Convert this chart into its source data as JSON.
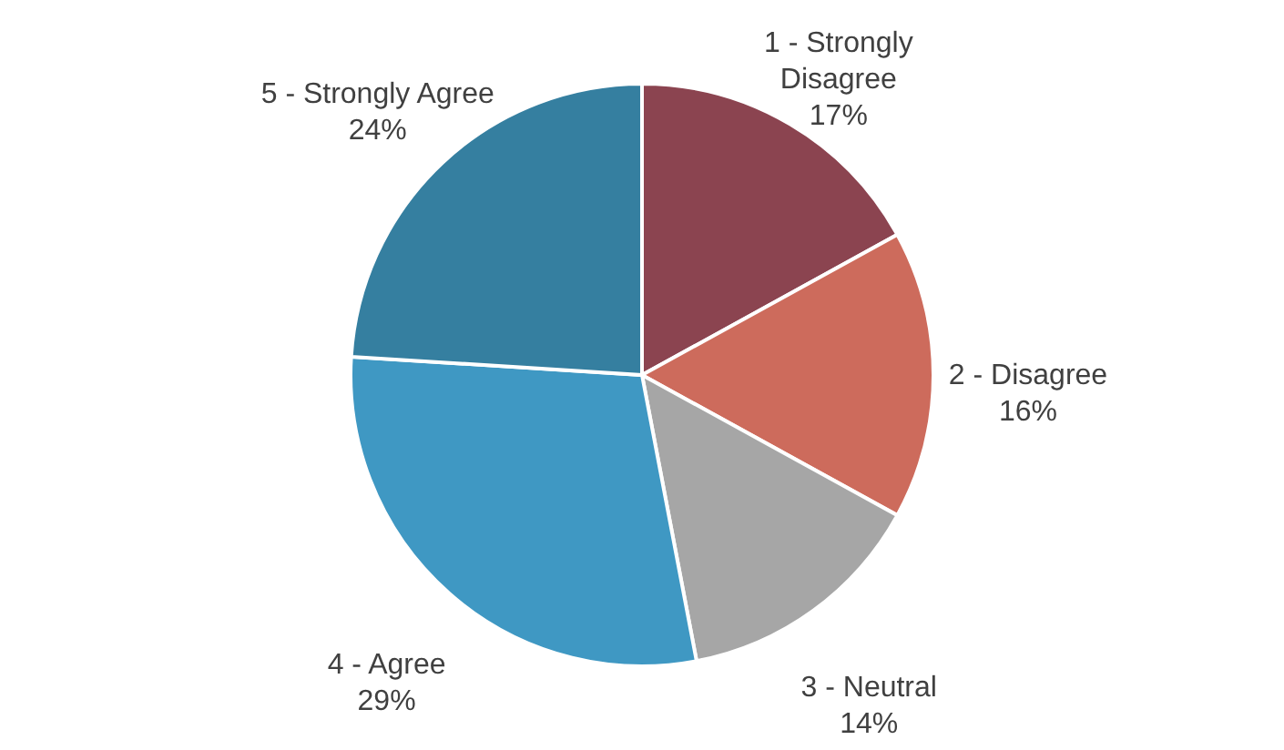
{
  "chart_data": {
    "type": "pie",
    "categories": [
      "1 - Strongly Disagree",
      "2 - Disagree",
      "3 - Neutral",
      "4 - Agree",
      "5 - Strongly Agree"
    ],
    "values": [
      17,
      16,
      14,
      29,
      24
    ],
    "value_labels": [
      "17%",
      "16%",
      "14%",
      "29%",
      "24%"
    ],
    "colors": [
      "#8b4450",
      "#cd6b5c",
      "#a6a6a6",
      "#3f98c3",
      "#357fa0"
    ]
  }
}
